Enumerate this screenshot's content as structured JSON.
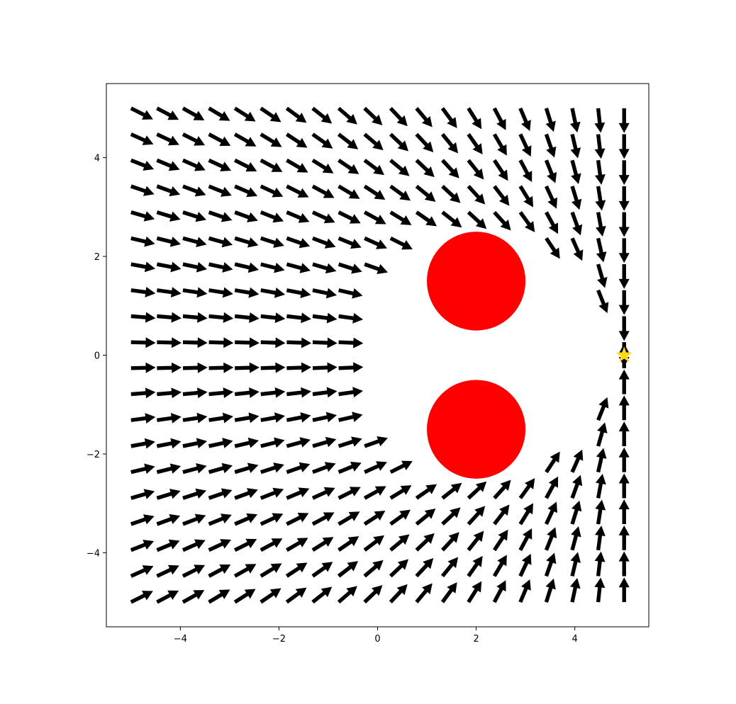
{
  "chart_data": {
    "type": "quiver",
    "title": "",
    "xlabel": "",
    "ylabel": "",
    "xlim": [
      -5.5,
      5.5
    ],
    "ylim": [
      -5.5,
      5.5
    ],
    "x_ticks": [
      -4,
      -2,
      0,
      2,
      4
    ],
    "y_ticks": [
      -4,
      -2,
      0,
      2,
      4
    ],
    "x_tick_labels": [
      "−4",
      "−2",
      "0",
      "2",
      "4"
    ],
    "y_tick_labels": [
      "−4",
      "−2",
      "0",
      "2",
      "4"
    ],
    "grid": false,
    "field": {
      "grid_min": -5,
      "grid_max": 5,
      "grid_count": 20,
      "arrow_length": 0.5,
      "goal": [
        5,
        0
      ],
      "obstacles": [
        {
          "center": [
            2,
            1.5
          ],
          "radius": 1
        },
        {
          "center": [
            2,
            -1.5
          ],
          "radius": 1
        }
      ],
      "excluded_region": {
        "center": [
          2,
          0
        ],
        "radius": 2.75
      }
    },
    "goal_marker": {
      "x": 5,
      "y": 0,
      "shape": "star",
      "color": "#ffd91a"
    },
    "colors": {
      "arrows": "#000000",
      "obstacles": "#ff0000",
      "goal": "#ffd91a"
    }
  }
}
